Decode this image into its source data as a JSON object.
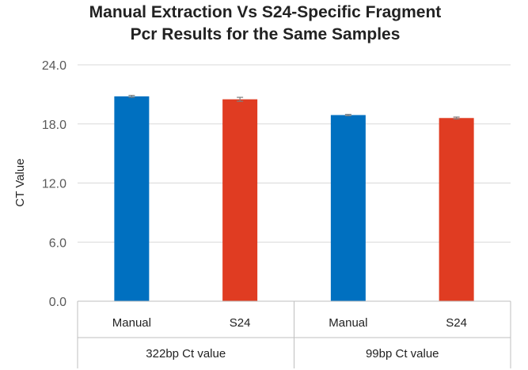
{
  "chart_data": {
    "type": "bar",
    "title_lines": [
      "Manual Extraction Vs S24-Specific Fragment",
      "Pcr Results for the Same Samples"
    ],
    "ylabel": "CT Value",
    "xlabel": "",
    "ylim": [
      0,
      24
    ],
    "yticks": [
      0,
      6,
      12,
      18,
      24
    ],
    "ytick_labels": [
      "0.0",
      "6.0",
      "12.0",
      "18.0",
      "24.0"
    ],
    "grid": true,
    "groups": [
      {
        "label": "322bp Ct value",
        "categories": [
          "Manual",
          "S24"
        ]
      },
      {
        "label": "99bp Ct value",
        "categories": [
          "Manual",
          "S24"
        ]
      }
    ],
    "bars": [
      {
        "group": 0,
        "category": "Manual",
        "value": 20.8,
        "error": 0.1,
        "color": "#0070C0"
      },
      {
        "group": 0,
        "category": "S24",
        "value": 20.5,
        "error": 0.2,
        "color": "#E03C22"
      },
      {
        "group": 1,
        "category": "Manual",
        "value": 18.9,
        "error": 0.07,
        "color": "#0070C0"
      },
      {
        "group": 1,
        "category": "S24",
        "value": 18.6,
        "error": 0.1,
        "color": "#E03C22"
      }
    ]
  }
}
